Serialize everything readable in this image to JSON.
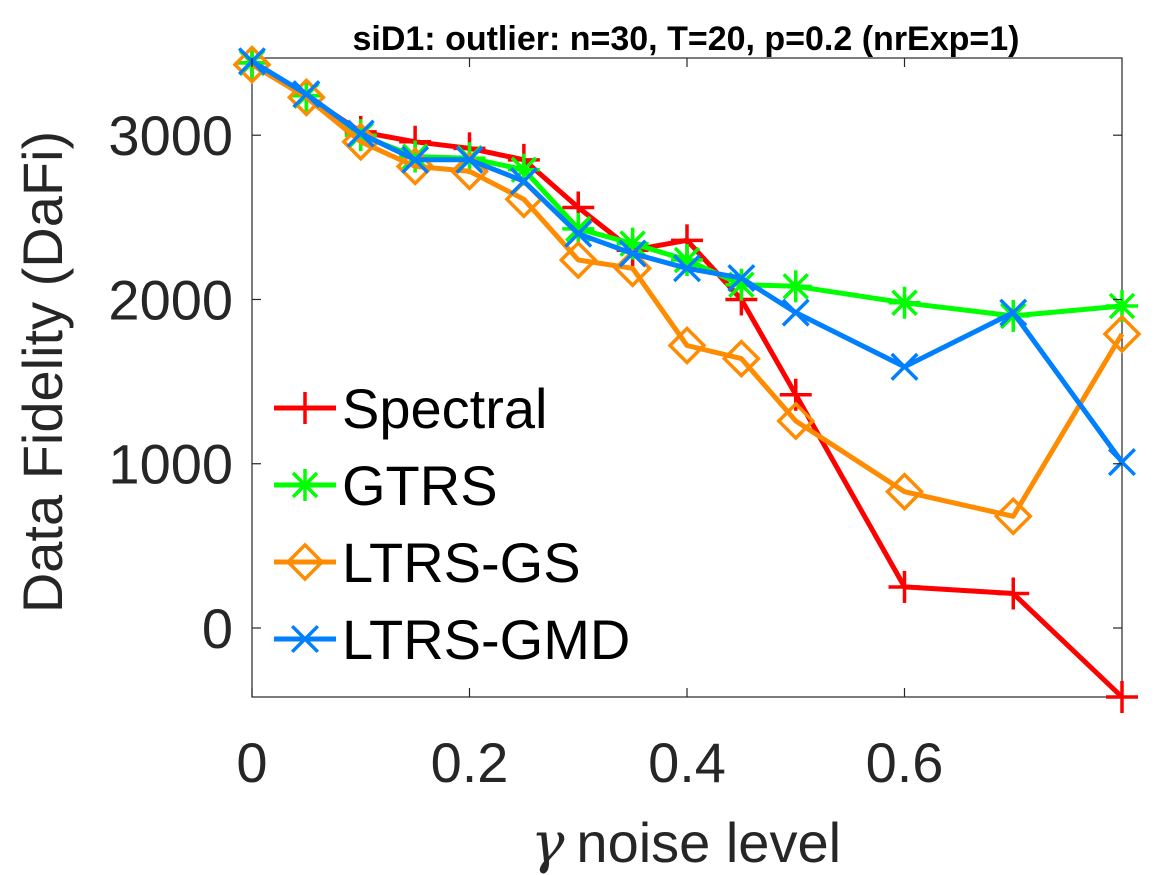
{
  "chart_data": {
    "type": "line",
    "title": "siD1: outlier: n=30, T=20, p=0.2 (nrExp=1)",
    "xlabel_symbol": "γ",
    "xlabel": "noise level",
    "ylabel": "Data Fidelity (DaFi)",
    "xlim": [
      0,
      0.8
    ],
    "ylim": [
      -420,
      3470
    ],
    "xticks": [
      0,
      0.2,
      0.4,
      0.6
    ],
    "xtick_labels": [
      "0",
      "0.2",
      "0.4",
      "0.6"
    ],
    "yticks": [
      0,
      1000,
      2000,
      3000
    ],
    "ytick_labels": [
      "0",
      "1000",
      "2000",
      "3000"
    ],
    "grid": false,
    "legend_position": "lower-left",
    "x": [
      0,
      0.05,
      0.1,
      0.15,
      0.2,
      0.25,
      0.3,
      0.35,
      0.4,
      0.45,
      0.5,
      0.6,
      0.7,
      0.8
    ],
    "series": [
      {
        "name": "Spectral",
        "color": "#ff0000",
        "marker": "plus",
        "values": [
          3440,
          3240,
          3020,
          2960,
          2920,
          2850,
          2560,
          2300,
          2360,
          2000,
          1420,
          250,
          210,
          -420
        ]
      },
      {
        "name": "GTRS",
        "color": "#00ff00",
        "marker": "asterisk",
        "values": [
          3440,
          3240,
          3000,
          2870,
          2860,
          2790,
          2430,
          2340,
          2240,
          2090,
          2080,
          1980,
          1900,
          1960
        ]
      },
      {
        "name": "LTRS-GS",
        "color": "#ff8c00",
        "marker": "diamond",
        "values": [
          3430,
          3230,
          2960,
          2810,
          2780,
          2610,
          2240,
          2190,
          1720,
          1640,
          1260,
          830,
          680,
          1790
        ]
      },
      {
        "name": "LTRS-GMD",
        "color": "#0080ff",
        "marker": "x",
        "values": [
          3450,
          3250,
          3010,
          2850,
          2850,
          2720,
          2400,
          2280,
          2190,
          2130,
          1920,
          1590,
          1920,
          1010
        ]
      }
    ]
  }
}
